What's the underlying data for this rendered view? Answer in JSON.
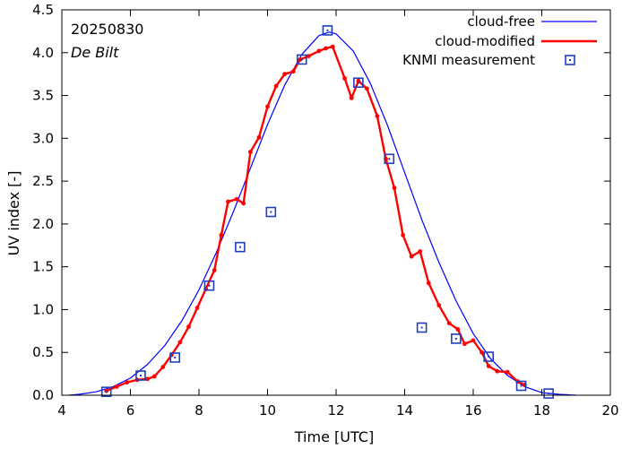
{
  "chart_data": {
    "type": "line",
    "date": "20250830",
    "location": "De Bilt",
    "xlabel": "Time  [UTC]",
    "ylabel": "UV index  [-]",
    "xlim": [
      4,
      20
    ],
    "ylim": [
      0,
      4.5
    ],
    "xticks": [
      4,
      6,
      8,
      10,
      12,
      14,
      16,
      18,
      20
    ],
    "xtick_labels": [
      "4",
      "6",
      "8",
      "10",
      "12",
      "14",
      "16",
      "18",
      "20"
    ],
    "yticks": [
      0,
      0.5,
      1.0,
      1.5,
      2.0,
      2.5,
      3.0,
      3.5,
      4.0,
      4.5
    ],
    "ytick_labels": [
      "0.0",
      "0.5",
      "1.0",
      "1.5",
      "2.0",
      "2.5",
      "3.0",
      "3.5",
      "4.0",
      "4.5"
    ],
    "legend_position": "top-right",
    "colors": {
      "cloud_free": "#0000ff",
      "cloud_modified": "#ff0000",
      "measurement": "#1f3fbf"
    },
    "series": [
      {
        "name": "cloud-free",
        "style": "line",
        "x": [
          4.2,
          4.5,
          5.0,
          5.5,
          6.0,
          6.5,
          7.0,
          7.5,
          8.0,
          8.5,
          9.0,
          9.5,
          10.0,
          10.5,
          11.0,
          11.5,
          11.8,
          12.0,
          12.5,
          13.0,
          13.5,
          14.0,
          14.5,
          15.0,
          15.5,
          16.0,
          16.5,
          17.0,
          17.5,
          18.0,
          18.5,
          19.0
        ],
        "y": [
          0.0,
          0.01,
          0.04,
          0.1,
          0.2,
          0.36,
          0.58,
          0.87,
          1.23,
          1.66,
          2.14,
          2.65,
          3.16,
          3.62,
          3.98,
          4.2,
          4.24,
          4.22,
          4.02,
          3.64,
          3.15,
          2.6,
          2.05,
          1.55,
          1.1,
          0.72,
          0.43,
          0.23,
          0.1,
          0.03,
          0.01,
          0.0
        ]
      },
      {
        "name": "cloud-modified",
        "style": "line-markers",
        "x": [
          5.3,
          5.6,
          5.9,
          6.2,
          6.5,
          6.7,
          6.95,
          7.2,
          7.45,
          7.7,
          7.95,
          8.2,
          8.45,
          8.65,
          8.85,
          9.1,
          9.3,
          9.5,
          9.75,
          10.0,
          10.25,
          10.5,
          10.75,
          10.95,
          11.2,
          11.5,
          11.7,
          11.9,
          12.25,
          12.45,
          12.65,
          12.9,
          13.2,
          13.45,
          13.7,
          13.95,
          14.2,
          14.45,
          14.7,
          15.0,
          15.3,
          15.55,
          15.75,
          16.0,
          16.25,
          16.45,
          16.7,
          17.0,
          17.3,
          17.5
        ],
        "y": [
          0.05,
          0.1,
          0.15,
          0.18,
          0.19,
          0.22,
          0.33,
          0.47,
          0.62,
          0.8,
          1.02,
          1.24,
          1.46,
          1.87,
          2.26,
          2.29,
          2.24,
          2.84,
          3.01,
          3.37,
          3.61,
          3.75,
          3.78,
          3.92,
          3.96,
          4.02,
          4.05,
          4.07,
          3.7,
          3.47,
          3.67,
          3.58,
          3.26,
          2.76,
          2.42,
          1.87,
          1.62,
          1.68,
          1.31,
          1.05,
          0.84,
          0.77,
          0.6,
          0.64,
          0.5,
          0.34,
          0.28,
          0.27,
          0.16,
          0.12
        ]
      },
      {
        "name": "KNMI measurement",
        "style": "markers",
        "x": [
          5.3,
          6.3,
          7.3,
          8.3,
          9.2,
          10.1,
          11.0,
          11.75,
          12.65,
          13.55,
          14.5,
          15.5,
          16.45,
          17.4,
          18.2
        ],
        "y": [
          0.04,
          0.23,
          0.44,
          1.28,
          1.73,
          2.14,
          3.92,
          4.26,
          3.65,
          2.76,
          0.79,
          0.66,
          0.45,
          0.11,
          0.02
        ]
      }
    ]
  }
}
